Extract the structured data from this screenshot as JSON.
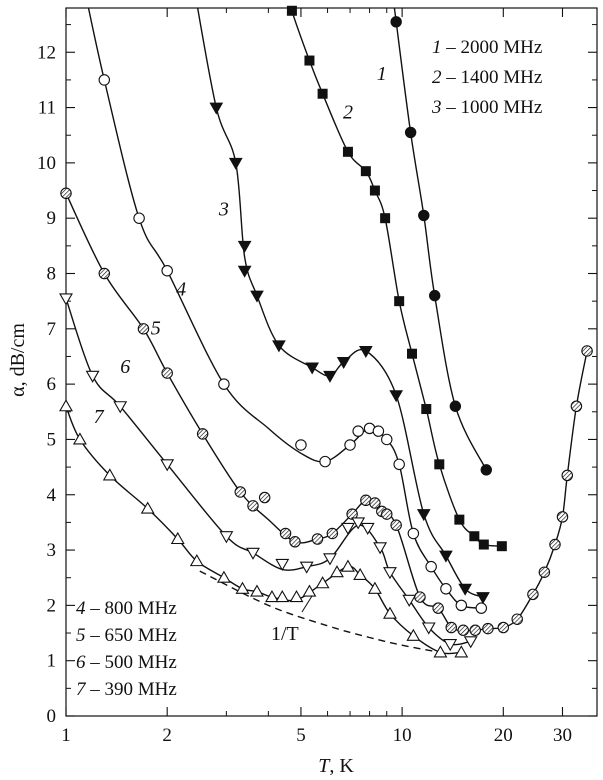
{
  "chart_data": {
    "type": "scatter",
    "xlabel": "T, K",
    "xlabel_var": "T",
    "xlabel_unit": ", K",
    "ylabel": "α, dB/cm",
    "xscale": "log",
    "xlim": [
      1,
      38
    ],
    "ylim": [
      0,
      12.8
    ],
    "x_ticks": [
      1,
      2,
      5,
      10,
      20,
      30
    ],
    "x_tick_labels": [
      "1",
      "2",
      "5",
      "10",
      "20",
      "30"
    ],
    "y_ticks": [
      0,
      1,
      2,
      3,
      4,
      5,
      6,
      7,
      8,
      9,
      10,
      11,
      12
    ],
    "y_tick_labels": [
      "0",
      "1",
      "2",
      "3",
      "4",
      "5",
      "6",
      "7",
      "8",
      "9",
      "10",
      "11",
      "12"
    ],
    "grid": false,
    "legend_top_right": [
      {
        "num": "1",
        "text": " – 2000 MHz"
      },
      {
        "num": "2",
        "text": " – 1400 MHz"
      },
      {
        "num": "3",
        "text": " – 1000 MHz"
      }
    ],
    "legend_bottom_left": [
      {
        "num": "4",
        "text": " – 800 MHz"
      },
      {
        "num": "5",
        "text": " – 650 MHz"
      },
      {
        "num": "6",
        "text": " – 500 MHz"
      },
      {
        "num": "7",
        "text": " – 390 MHz"
      }
    ],
    "annotation": "1/T",
    "reference_curve": {
      "label": "1/T",
      "style": "dashed",
      "x": [
        2.5,
        4,
        6,
        8,
        10,
        13
      ],
      "y": [
        2.62,
        2.0,
        1.63,
        1.42,
        1.28,
        1.15
      ]
    },
    "series": [
      {
        "id": "1",
        "label": "1",
        "freq": "2000 MHz",
        "marker": "filled-circle",
        "x": [
          9.6,
          10.6,
          11.6,
          12.5,
          14.4,
          17.8
        ],
        "y": [
          12.55,
          10.55,
          9.05,
          7.6,
          5.6,
          4.45
        ],
        "line_x": [
          9.3,
          9.6,
          10.6,
          11.6,
          12.5,
          14.4,
          17.8
        ],
        "line_y": [
          13.2,
          12.55,
          10.55,
          9.05,
          7.6,
          5.6,
          4.45
        ]
      },
      {
        "id": "2",
        "label": "2",
        "freq": "1400 MHz",
        "marker": "filled-square",
        "x": [
          4.7,
          5.3,
          5.8,
          6.9,
          7.8,
          8.3,
          8.9,
          9.8,
          10.7,
          11.8,
          12.9,
          14.8,
          16.4,
          17.5,
          19.8
        ],
        "y": [
          12.75,
          11.85,
          11.25,
          10.2,
          9.85,
          9.5,
          9.0,
          7.5,
          6.55,
          5.55,
          4.55,
          3.55,
          3.25,
          3.1,
          3.07
        ],
        "line_x": [
          4.6,
          4.7,
          5.3,
          5.8,
          6.9,
          7.8,
          8.3,
          8.9,
          9.8,
          10.7,
          11.8,
          12.9,
          14.8,
          16.4,
          17.5,
          19.8
        ],
        "line_y": [
          13.1,
          12.75,
          11.85,
          11.25,
          10.2,
          9.85,
          9.5,
          9.0,
          7.5,
          6.55,
          5.55,
          4.55,
          3.55,
          3.25,
          3.1,
          3.07
        ]
      },
      {
        "id": "3",
        "label": "3",
        "freq": "1000 MHz",
        "marker": "filled-triangle-down",
        "x": [
          2.8,
          3.2,
          3.4,
          3.4,
          3.7,
          4.3,
          5.4,
          6.1,
          6.7,
          7.8,
          9.6,
          11.6,
          13.5,
          15.4,
          17.4
        ],
        "y": [
          11.0,
          10.0,
          8.5,
          8.05,
          7.6,
          6.7,
          6.3,
          6.15,
          6.4,
          6.6,
          5.8,
          3.65,
          2.9,
          2.3,
          2.15
        ],
        "line_x": [
          2.4,
          2.8,
          3.2,
          3.4,
          3.7,
          4.3,
          5.4,
          6.1,
          6.7,
          7.8,
          9.6,
          11.6,
          13.5,
          15.4,
          17.4
        ],
        "line_y": [
          13.2,
          11.0,
          10.0,
          8.3,
          7.6,
          6.7,
          6.3,
          6.15,
          6.4,
          6.6,
          5.8,
          3.65,
          2.9,
          2.3,
          2.15
        ]
      },
      {
        "id": "4",
        "label": "4",
        "freq": "800 MHz",
        "marker": "open-circle",
        "x": [
          1.3,
          1.65,
          2.0,
          2.95,
          5.0,
          5.9,
          7.0,
          7.4,
          8.0,
          8.5,
          9.0,
          9.8,
          10.8,
          12.2,
          13.5,
          15.0,
          17.2
        ],
        "y": [
          11.5,
          9.0,
          8.05,
          6.0,
          4.9,
          4.6,
          4.9,
          5.15,
          5.2,
          5.15,
          5.0,
          4.55,
          3.3,
          2.7,
          2.3,
          2.0,
          1.95
        ],
        "line_x": [
          1.13,
          1.3,
          1.65,
          2.0,
          2.95,
          4.0,
          5.0,
          5.9,
          7.0,
          8.0,
          9.0,
          9.8,
          10.8,
          12.2,
          13.5,
          15.0,
          17.2
        ],
        "line_y": [
          13.2,
          11.5,
          9.0,
          8.05,
          6.0,
          5.2,
          4.75,
          4.6,
          4.9,
          5.2,
          5.0,
          4.55,
          3.3,
          2.7,
          2.3,
          2.0,
          1.95
        ]
      },
      {
        "id": "5",
        "label": "5",
        "freq": "650 MHz",
        "marker": "hatched-circle",
        "x": [
          1.0,
          1.3,
          1.7,
          2.0,
          2.55,
          3.3,
          3.6,
          3.9,
          4.5,
          4.8,
          5.6,
          6.2,
          7.1,
          7.8,
          8.3,
          8.7,
          9.0,
          9.6,
          11.3,
          12.8,
          14.0,
          15.2,
          16.5,
          18.0,
          20.0,
          22.0,
          24.5,
          26.5,
          28.5,
          30.0,
          31.0,
          33.0,
          35.5
        ],
        "y": [
          9.45,
          8.0,
          7.0,
          6.2,
          5.1,
          4.05,
          3.8,
          3.95,
          3.3,
          3.15,
          3.2,
          3.3,
          3.65,
          3.9,
          3.85,
          3.7,
          3.65,
          3.45,
          2.15,
          1.95,
          1.6,
          1.55,
          1.55,
          1.58,
          1.6,
          1.75,
          2.2,
          2.6,
          3.1,
          3.6,
          4.35,
          5.6,
          6.6
        ],
        "line_x": [
          1.0,
          1.3,
          1.7,
          2.0,
          2.55,
          3.3,
          4.0,
          4.8,
          5.6,
          6.2,
          7.1,
          7.8,
          8.5,
          9.6,
          11.3,
          12.8,
          14.0,
          15.2,
          16.5,
          18.0,
          20.0,
          22.0,
          24.5,
          26.5,
          28.5,
          30.0,
          31.0,
          33.0,
          35.5
        ],
        "line_y": [
          9.45,
          8.0,
          7.0,
          6.2,
          5.1,
          4.05,
          3.55,
          3.15,
          3.2,
          3.3,
          3.65,
          3.9,
          3.8,
          3.45,
          2.15,
          1.95,
          1.6,
          1.55,
          1.55,
          1.58,
          1.6,
          1.75,
          2.2,
          2.6,
          3.1,
          3.6,
          4.35,
          5.6,
          6.6
        ]
      },
      {
        "id": "6",
        "label": "6",
        "freq": "500 MHz",
        "marker": "open-triangle-down",
        "x": [
          1.0,
          1.2,
          1.45,
          2.0,
          3.0,
          3.6,
          4.4,
          5.2,
          6.1,
          6.9,
          7.4,
          7.9,
          8.6,
          9.2,
          10.5,
          12.0,
          13.9,
          16.0
        ],
        "y": [
          7.55,
          6.15,
          5.6,
          4.55,
          3.25,
          2.95,
          2.75,
          2.7,
          2.85,
          3.4,
          3.5,
          3.4,
          3.05,
          2.6,
          2.1,
          1.6,
          1.3,
          1.35
        ],
        "line_x": [
          1.0,
          1.2,
          1.45,
          2.0,
          3.0,
          3.6,
          4.4,
          5.2,
          6.1,
          7.4,
          8.6,
          9.2,
          10.5,
          12.0,
          13.9,
          16.0
        ],
        "line_y": [
          7.55,
          6.15,
          5.6,
          4.55,
          3.25,
          2.95,
          2.65,
          2.7,
          2.85,
          3.45,
          3.05,
          2.6,
          2.1,
          1.6,
          1.3,
          1.35
        ]
      },
      {
        "id": "7",
        "label": "7",
        "freq": "390 MHz",
        "marker": "open-triangle-up",
        "x": [
          1.0,
          1.1,
          1.35,
          1.75,
          2.15,
          2.45,
          2.95,
          3.35,
          3.7,
          4.1,
          4.4,
          4.85,
          5.3,
          5.8,
          6.4,
          6.9,
          7.5,
          8.3,
          9.2,
          10.8,
          13.0,
          15.0
        ],
        "y": [
          5.6,
          5.0,
          4.35,
          3.75,
          3.2,
          2.8,
          2.5,
          2.3,
          2.25,
          2.15,
          2.15,
          2.15,
          2.25,
          2.4,
          2.6,
          2.7,
          2.55,
          2.3,
          1.85,
          1.45,
          1.15,
          1.15
        ],
        "line_x": [
          1.0,
          1.1,
          1.35,
          1.75,
          2.15,
          2.45,
          2.95,
          3.35,
          3.7,
          4.1,
          4.85,
          5.8,
          6.9,
          7.5,
          8.3,
          9.2,
          10.8,
          13.0,
          15.0
        ],
        "line_y": [
          5.6,
          5.0,
          4.35,
          3.75,
          3.2,
          2.8,
          2.5,
          2.3,
          2.25,
          2.15,
          2.1,
          2.4,
          2.7,
          2.55,
          2.3,
          1.85,
          1.45,
          1.15,
          1.15
        ]
      }
    ],
    "curve_labels": [
      {
        "text": "1",
        "x": 8.7,
        "y": 11.5
      },
      {
        "text": "2",
        "x": 6.9,
        "y": 10.8
      },
      {
        "text": "3",
        "x": 2.95,
        "y": 9.05
      },
      {
        "text": "4",
        "x": 2.2,
        "y": 7.6
      },
      {
        "text": "5",
        "x": 1.85,
        "y": 6.9
      },
      {
        "text": "6",
        "x": 1.5,
        "y": 6.2
      },
      {
        "text": "7",
        "x": 1.25,
        "y": 5.3
      }
    ]
  }
}
